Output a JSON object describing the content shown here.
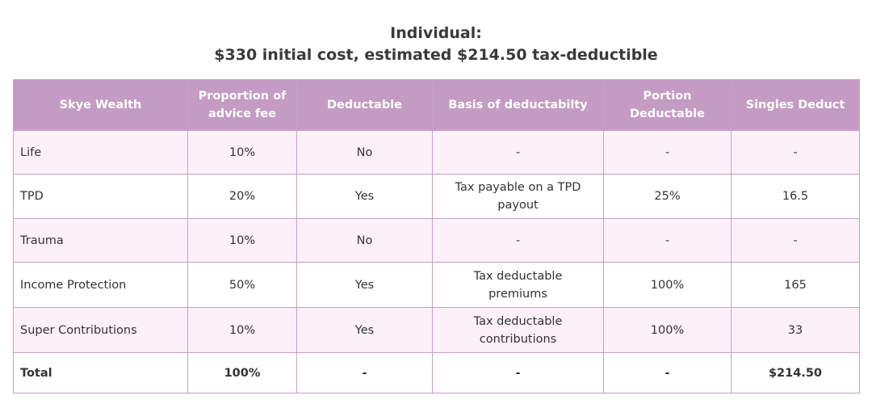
{
  "title": {
    "line1": "Individual:",
    "line2": "$330 initial cost, estimated $214.50 tax-deductible"
  },
  "table": {
    "header": [
      "Skye Wealth",
      "Proportion of advice fee",
      "Deductable",
      "Basis of deductabilty",
      "Portion Deductable",
      "Singles Deduct"
    ],
    "rows": [
      [
        "Life",
        "10%",
        "No",
        "-",
        "-",
        "-"
      ],
      [
        "TPD",
        "20%",
        "Yes",
        "Tax payable on a TPD payout",
        "25%",
        "16.5"
      ],
      [
        "Trauma",
        "10%",
        "No",
        "-",
        "-",
        "-"
      ],
      [
        "Income Protection",
        "50%",
        "Yes",
        "Tax deductable premiums",
        "100%",
        "165"
      ],
      [
        "Super Contributions",
        "10%",
        "Yes",
        "Tax deductable contributions",
        "100%",
        "33"
      ],
      [
        "Total",
        "100%",
        "-",
        "-",
        "-",
        "$214.50"
      ]
    ]
  }
}
